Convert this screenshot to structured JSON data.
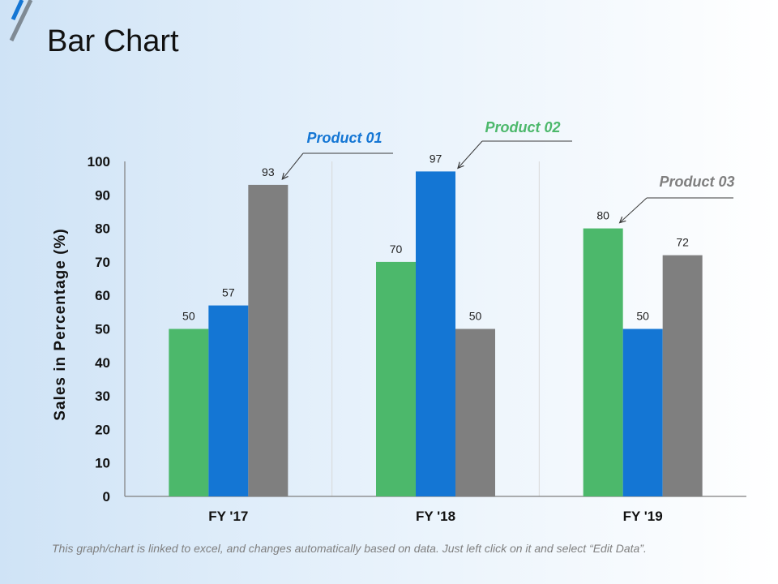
{
  "page": {
    "title": "Bar Chart",
    "footnote": "This graph/chart is linked to excel, and changes automatically based on data. Just left click on it and select “Edit Data”."
  },
  "colors": {
    "product_01": "#1476d4",
    "product_02": "#4cb86b",
    "product_03": "#7f7f7f",
    "axis": "#7f7f7f",
    "divider": "#d9d9d9",
    "text": "#111111",
    "label": "#222222"
  },
  "chart_data": {
    "type": "bar",
    "title": "Bar Chart",
    "xlabel": "",
    "ylabel": "Sales in Percentage (%)",
    "ylim": [
      0,
      100
    ],
    "yticks": [
      0,
      10,
      20,
      30,
      40,
      50,
      60,
      70,
      80,
      90,
      100
    ],
    "categories": [
      "FY '17",
      "FY '18",
      "FY '19"
    ],
    "series": [
      {
        "name": "Product 02",
        "color": "#4cb86b",
        "values": [
          50,
          70,
          80
        ]
      },
      {
        "name": "Product 01",
        "color": "#1476d4",
        "values": [
          57,
          97,
          50
        ]
      },
      {
        "name": "Product 03",
        "color": "#7f7f7f",
        "values": [
          93,
          50,
          72
        ]
      }
    ],
    "callouts": [
      {
        "text": "Product 01",
        "series": "Product 01",
        "category": "FY '17",
        "bar": "Product 03"
      },
      {
        "text": "Product 02",
        "series": "Product 02",
        "category": "FY '18",
        "bar": "Product 01"
      },
      {
        "text": "Product 03",
        "series": "Product 03",
        "category": "FY '19",
        "bar": "Product 02"
      }
    ]
  }
}
